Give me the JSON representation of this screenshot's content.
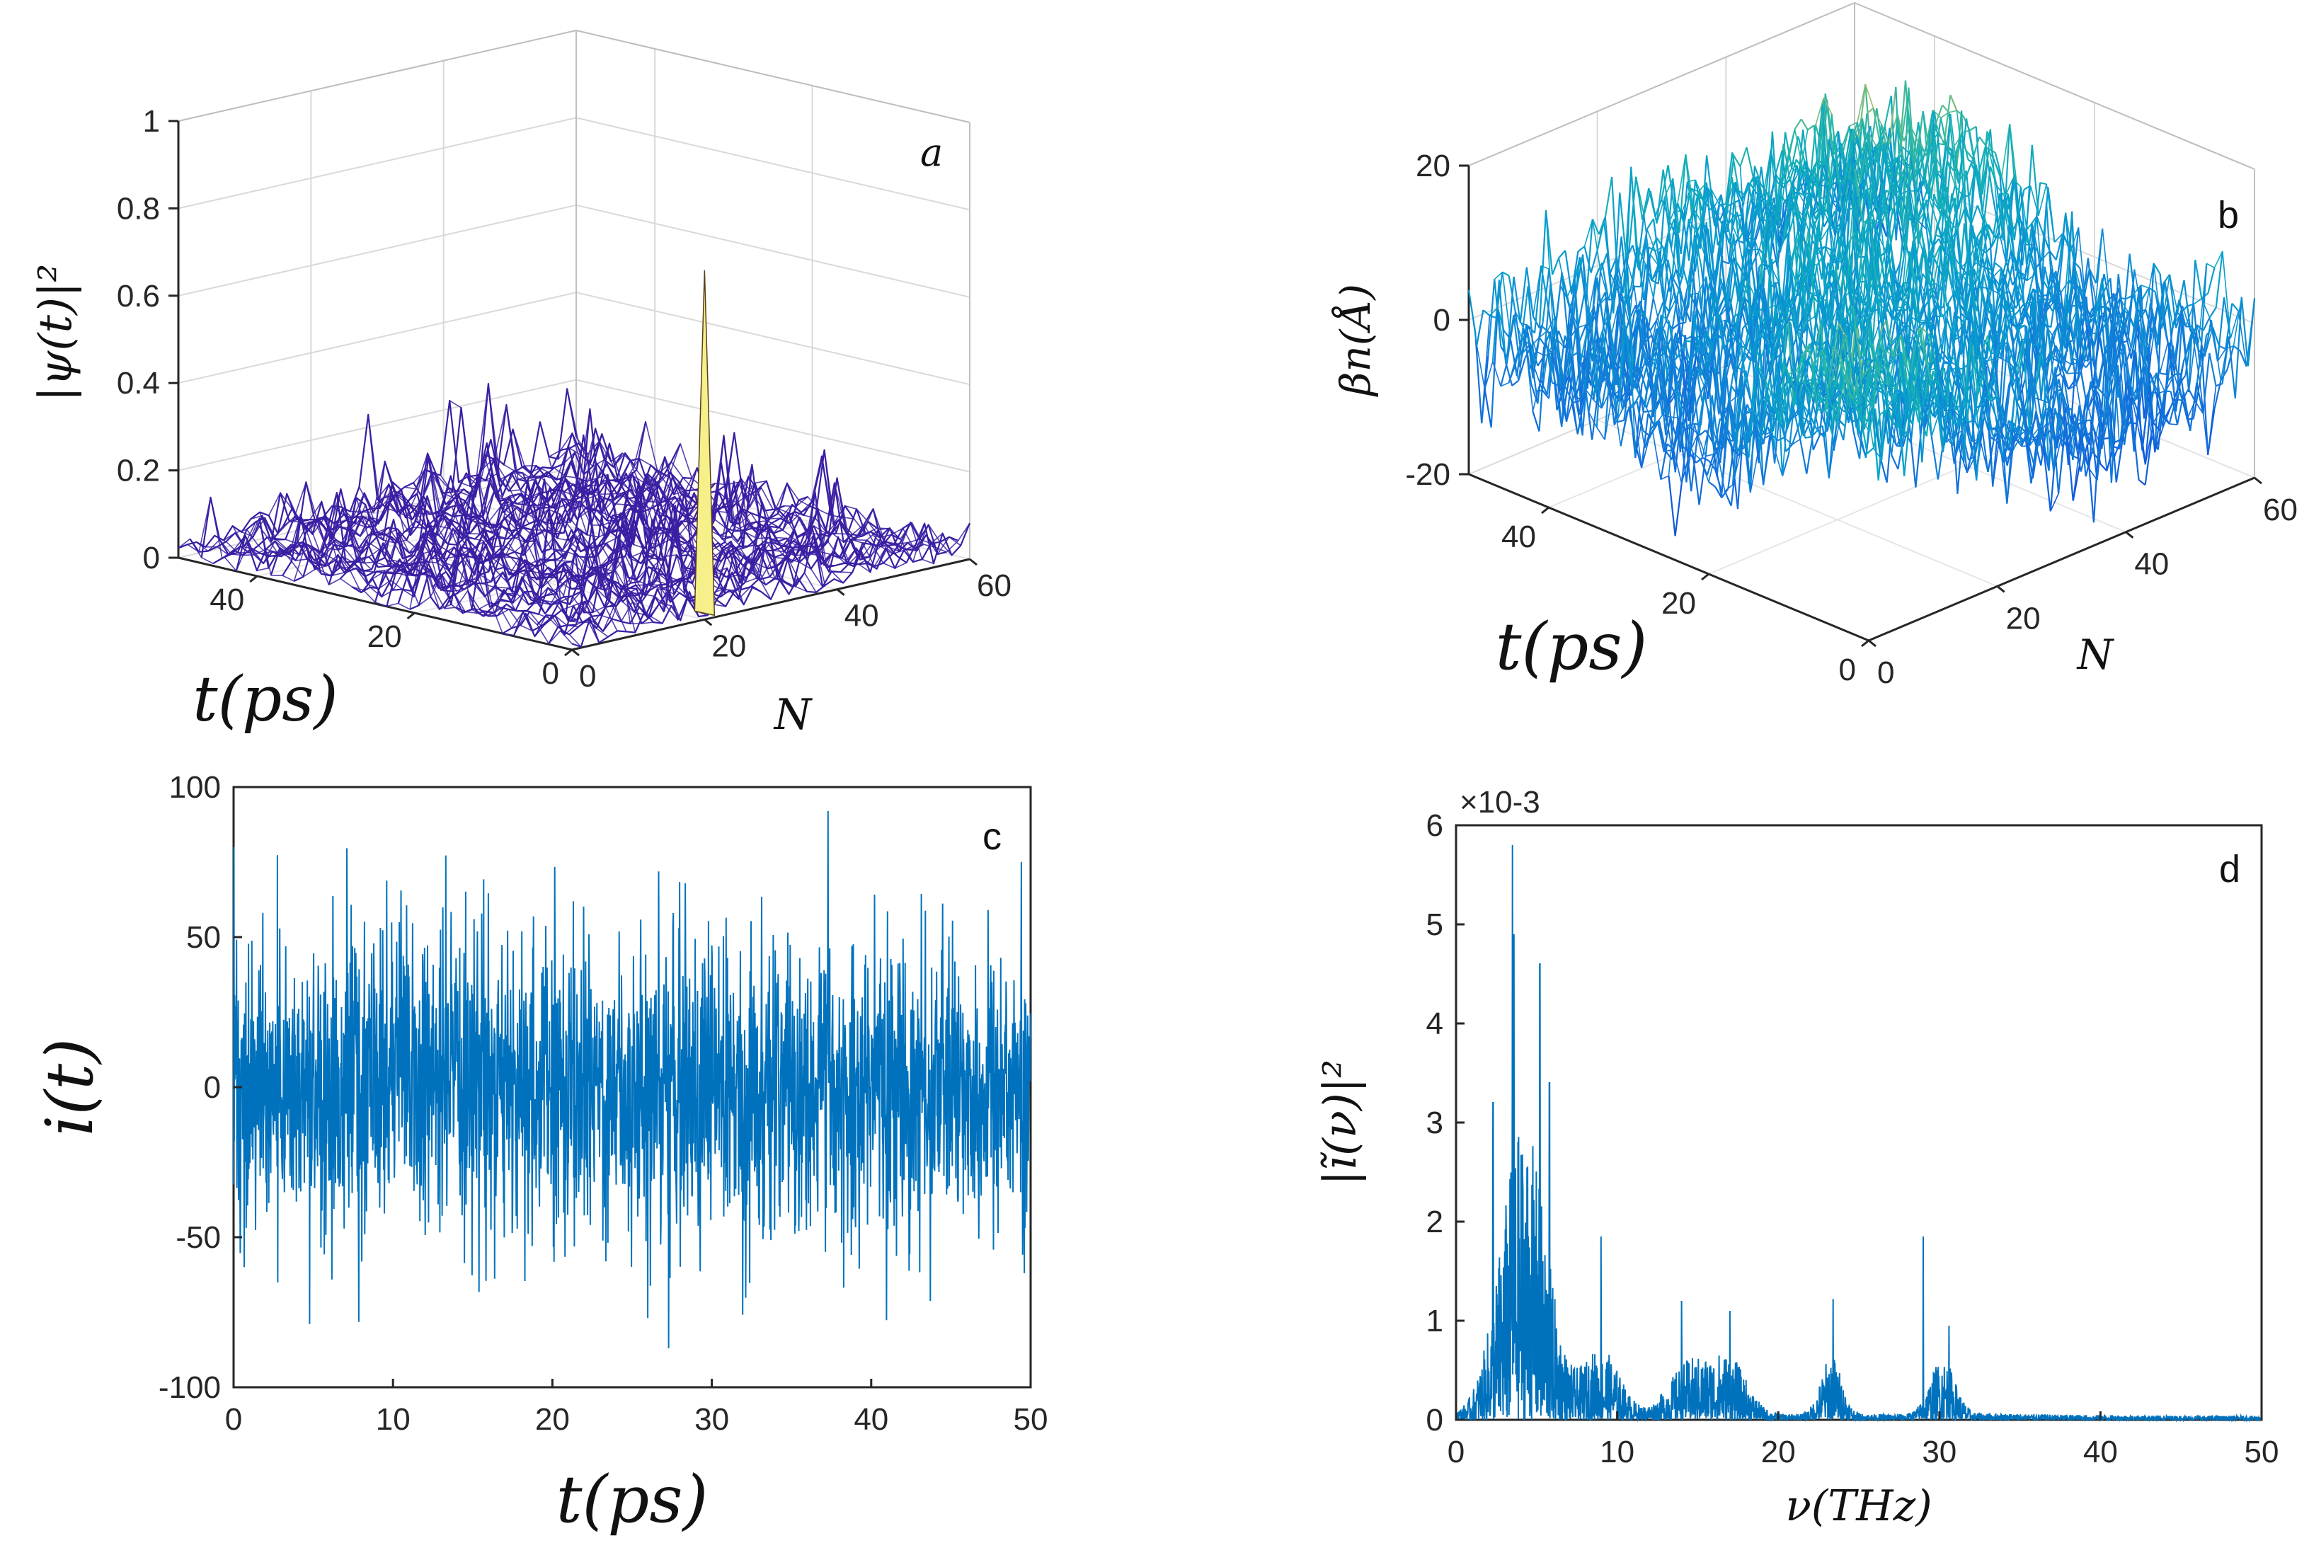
{
  "chart_data": [
    {
      "panel": "a",
      "type": "surface",
      "title": "",
      "zlabel": "|ψ(t)|²",
      "xlabel": "t(ps)",
      "ylabel": "N",
      "x_range": [
        0,
        50
      ],
      "y_range": [
        0,
        60
      ],
      "zlim": [
        0,
        1
      ],
      "z_ticks": [
        "0",
        "0.2",
        "0.4",
        "0.6",
        "0.8",
        "1"
      ],
      "x_ticks": [
        "0",
        "20",
        "40"
      ],
      "y_ticks": [
        "0",
        "20",
        "40",
        "60"
      ],
      "background_level": 0.05,
      "background_max": 0.3,
      "peak": {
        "t": 0,
        "N": 20,
        "value": 0.8
      },
      "colors": {
        "mesh": "#3b1fa3",
        "peak": "#f5f08a"
      },
      "grid": true
    },
    {
      "panel": "b",
      "type": "surface",
      "title": "",
      "zlabel": "βn(Å)",
      "xlabel": "t(ps)",
      "ylabel": "N",
      "x_range": [
        0,
        50
      ],
      "y_range": [
        0,
        60
      ],
      "zlim": [
        -20,
        20
      ],
      "z_ticks": [
        "-20",
        "0",
        "20"
      ],
      "x_ticks": [
        "0",
        "20",
        "40"
      ],
      "y_ticks": [
        "0",
        "20",
        "40",
        "60"
      ],
      "colormap": "parula",
      "grid": true
    },
    {
      "panel": "c",
      "type": "line",
      "title": "",
      "xlabel": "t(ps)",
      "ylabel": "i(t)",
      "xlim": [
        0,
        50
      ],
      "ylim": [
        -100,
        100
      ],
      "x_ticks": [
        "0",
        "10",
        "20",
        "30",
        "40",
        "50"
      ],
      "y_ticks": [
        "100",
        "50",
        "0",
        "-50",
        "-100"
      ],
      "typical_amplitude": 30,
      "max_value": 92,
      "min_value": -87,
      "color": "#0072bd"
    },
    {
      "panel": "d",
      "type": "line",
      "title": "",
      "xlabel": "ν(THz)",
      "ylabel": "|ĩ(ν)|²",
      "exponent_label": "×10-3",
      "xlim": [
        0,
        50
      ],
      "ylim": [
        0,
        6
      ],
      "x_ticks": [
        "0",
        "10",
        "20",
        "30",
        "40",
        "50"
      ],
      "y_ticks": [
        "6",
        "5",
        "4",
        "3",
        "2",
        "1",
        "0"
      ],
      "peaks": [
        {
          "x": 3.5,
          "y": 5.8
        },
        {
          "x": 3.6,
          "y": 4.9
        },
        {
          "x": 5.2,
          "y": 4.6
        },
        {
          "x": 5.8,
          "y": 3.4
        },
        {
          "x": 2.3,
          "y": 3.2
        },
        {
          "x": 9.0,
          "y": 1.85
        },
        {
          "x": 14.0,
          "y": 1.2
        },
        {
          "x": 17.0,
          "y": 1.1
        },
        {
          "x": 23.4,
          "y": 1.22
        },
        {
          "x": 29.0,
          "y": 1.85
        },
        {
          "x": 30.6,
          "y": 0.95
        }
      ],
      "color": "#0072bd"
    }
  ]
}
